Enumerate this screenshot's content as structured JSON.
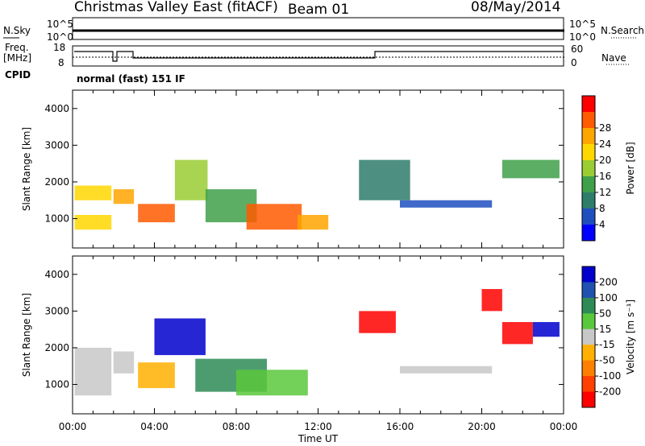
{
  "header": {
    "title": "Christmas Valley East (fitACF)",
    "beam": "Beam 01",
    "date": "08/May/2014"
  },
  "strips": {
    "nsky": {
      "label": "N.Sky",
      "tick_top": "10^5",
      "tick_bottom": "10^0",
      "right_label": "N.Search",
      "right_tick_top": "10^5",
      "right_tick_bottom": "10^0"
    },
    "freq": {
      "label_line1": "Freq.",
      "label_line2": "[MHz]",
      "tick_top": "18",
      "tick_bottom": "8",
      "right_label": "Nave",
      "right_tick_top": "60",
      "right_tick_bottom": "0"
    },
    "cpid": {
      "label": "CPID",
      "value": "normal (fast) 151 IF"
    }
  },
  "chart_data": [
    {
      "type": "heatmap",
      "name": "power",
      "ylabel": "Slant Range [km]",
      "yticks": [
        "1000",
        "2000",
        "3000",
        "4000"
      ],
      "ylim": [
        200,
        4500
      ],
      "xlim": [
        0,
        24
      ],
      "colorbar": {
        "label": "Power [dB]",
        "ticks": [
          "4",
          "8",
          "12",
          "16",
          "20",
          "24",
          "28"
        ],
        "colors": [
          "#0000ff",
          "#1f4fbf",
          "#2e7d6b",
          "#3fa04a",
          "#9acd32",
          "#ffd700",
          "#ffa500",
          "#ff5a00",
          "#ff0000"
        ]
      },
      "features": [
        {
          "x": [
            0.1,
            1.9
          ],
          "y": [
            700,
            1100
          ],
          "value": 20
        },
        {
          "x": [
            0.1,
            1.9
          ],
          "y": [
            1500,
            1900
          ],
          "value": 18
        },
        {
          "x": [
            2.0,
            3.0
          ],
          "y": [
            1400,
            1800
          ],
          "value": 22
        },
        {
          "x": [
            3.2,
            5.0
          ],
          "y": [
            900,
            1400
          ],
          "value": 26
        },
        {
          "x": [
            5.0,
            6.6
          ],
          "y": [
            1500,
            2600
          ],
          "value": 16
        },
        {
          "x": [
            6.5,
            9.0
          ],
          "y": [
            900,
            1800
          ],
          "value": 14
        },
        {
          "x": [
            8.5,
            11.2
          ],
          "y": [
            700,
            1400
          ],
          "value": 28
        },
        {
          "x": [
            11.0,
            12.5
          ],
          "y": [
            700,
            1100
          ],
          "value": 24
        },
        {
          "x": [
            14.0,
            16.5
          ],
          "y": [
            1500,
            2600
          ],
          "value": 8
        },
        {
          "x": [
            16.0,
            20.5
          ],
          "y": [
            1300,
            1500
          ],
          "value": 6
        },
        {
          "x": [
            21.0,
            23.8
          ],
          "y": [
            2100,
            2600
          ],
          "value": 12
        }
      ]
    },
    {
      "type": "heatmap",
      "name": "velocity",
      "ylabel": "Slant Range [km]",
      "xlabel": "Time UT",
      "yticks": [
        "1000",
        "2000",
        "3000",
        "4000"
      ],
      "xticks": [
        "00:00",
        "04:00",
        "08:00",
        "12:00",
        "16:00",
        "20:00",
        "00:00"
      ],
      "ylim": [
        200,
        4500
      ],
      "xlim": [
        0,
        24
      ],
      "colorbar": {
        "label": "Velocity [m s^-1]",
        "ticks": [
          "200",
          "100",
          "50",
          "15",
          "-15",
          "-50",
          "-100",
          "-200"
        ],
        "colors": [
          "#0000cc",
          "#2050b0",
          "#2e8b57",
          "#5ac83c",
          "#c8c8c8",
          "#ffb000",
          "#ff7f00",
          "#ff4000",
          "#ff0000"
        ]
      },
      "features": [
        {
          "x": [
            0.1,
            1.9
          ],
          "y": [
            700,
            2000
          ],
          "value": 0
        },
        {
          "x": [
            2.0,
            3.0
          ],
          "y": [
            1300,
            1900
          ],
          "value": 0
        },
        {
          "x": [
            3.2,
            5.0
          ],
          "y": [
            900,
            1600
          ],
          "value": -60
        },
        {
          "x": [
            4.0,
            6.5
          ],
          "y": [
            1800,
            2800
          ],
          "value": 200
        },
        {
          "x": [
            6.0,
            9.5
          ],
          "y": [
            800,
            1700
          ],
          "value": 120
        },
        {
          "x": [
            8.0,
            11.5
          ],
          "y": [
            700,
            1400
          ],
          "value": 40
        },
        {
          "x": [
            14.0,
            15.8
          ],
          "y": [
            2400,
            3000
          ],
          "value": -200
        },
        {
          "x": [
            16.0,
            20.5
          ],
          "y": [
            1300,
            1500
          ],
          "value": 0
        },
        {
          "x": [
            20.0,
            21.0
          ],
          "y": [
            3000,
            3600
          ],
          "value": -200
        },
        {
          "x": [
            21.0,
            22.5
          ],
          "y": [
            2100,
            2700
          ],
          "value": -200
        },
        {
          "x": [
            22.5,
            23.8
          ],
          "y": [
            2300,
            2700
          ],
          "value": 200
        }
      ]
    }
  ]
}
